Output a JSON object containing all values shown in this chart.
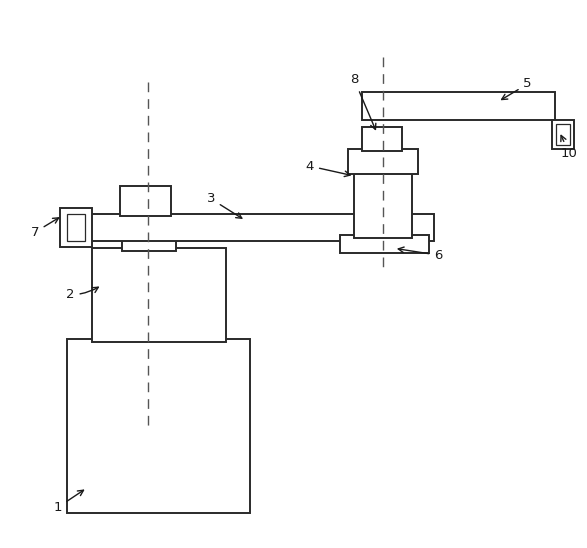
{
  "background_color": "#ffffff",
  "line_color": "#2a2a2a",
  "dash_color": "#555555"
}
